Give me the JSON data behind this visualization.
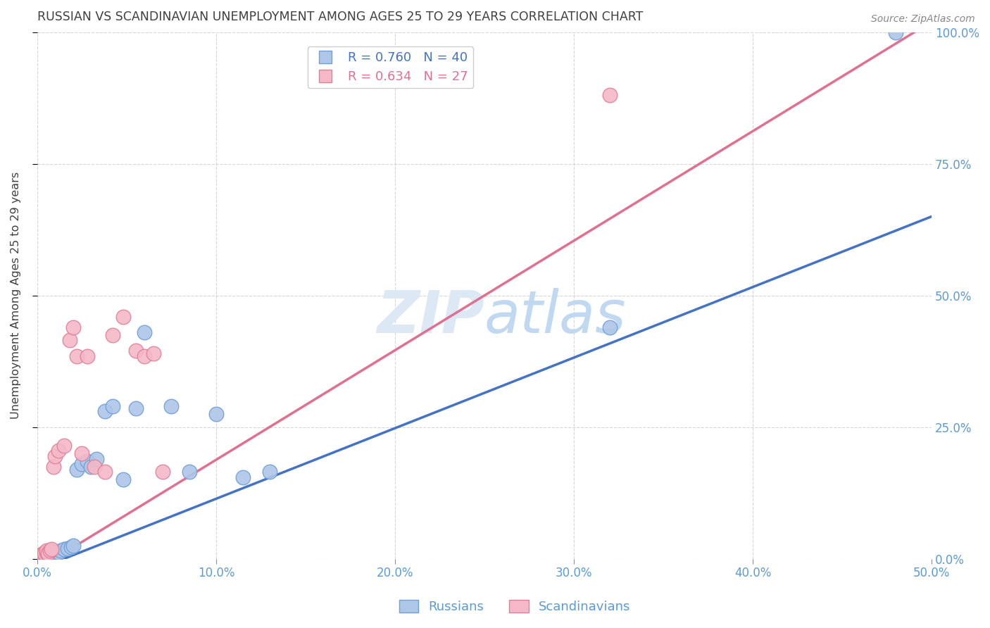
{
  "title": "RUSSIAN VS SCANDINAVIAN UNEMPLOYMENT AMONG AGES 25 TO 29 YEARS CORRELATION CHART",
  "source": "Source: ZipAtlas.com",
  "ylabel": "Unemployment Among Ages 25 to 29 years",
  "xlim": [
    0.0,
    0.5
  ],
  "ylim": [
    0.0,
    1.0
  ],
  "xticks": [
    0.0,
    0.1,
    0.2,
    0.3,
    0.4,
    0.5
  ],
  "yticks": [
    0.0,
    0.25,
    0.5,
    0.75,
    1.0
  ],
  "legend_entries": [
    {
      "label": "R = 0.760   N = 40"
    },
    {
      "label": "R = 0.634   N = 27"
    }
  ],
  "russians_x": [
    0.001,
    0.002,
    0.002,
    0.003,
    0.003,
    0.004,
    0.004,
    0.005,
    0.005,
    0.006,
    0.006,
    0.007,
    0.007,
    0.008,
    0.009,
    0.01,
    0.011,
    0.012,
    0.013,
    0.015,
    0.017,
    0.019,
    0.02,
    0.022,
    0.025,
    0.028,
    0.03,
    0.033,
    0.038,
    0.042,
    0.048,
    0.055,
    0.06,
    0.075,
    0.085,
    0.1,
    0.115,
    0.13,
    0.32,
    0.48
  ],
  "russians_y": [
    0.005,
    0.006,
    0.007,
    0.006,
    0.008,
    0.007,
    0.01,
    0.008,
    0.01,
    0.008,
    0.01,
    0.012,
    0.009,
    0.01,
    0.01,
    0.012,
    0.01,
    0.012,
    0.015,
    0.018,
    0.02,
    0.022,
    0.025,
    0.17,
    0.18,
    0.185,
    0.175,
    0.19,
    0.28,
    0.29,
    0.15,
    0.285,
    0.43,
    0.29,
    0.165,
    0.275,
    0.155,
    0.165,
    0.44,
    1.0
  ],
  "scandinavians_x": [
    0.001,
    0.002,
    0.003,
    0.004,
    0.005,
    0.005,
    0.006,
    0.007,
    0.008,
    0.009,
    0.01,
    0.012,
    0.015,
    0.018,
    0.02,
    0.022,
    0.025,
    0.028,
    0.032,
    0.038,
    0.042,
    0.048,
    0.055,
    0.06,
    0.065,
    0.07,
    0.32
  ],
  "scandinavians_y": [
    0.005,
    0.008,
    0.01,
    0.01,
    0.012,
    0.015,
    0.01,
    0.015,
    0.018,
    0.175,
    0.195,
    0.205,
    0.215,
    0.415,
    0.44,
    0.385,
    0.2,
    0.385,
    0.175,
    0.165,
    0.425,
    0.46,
    0.395,
    0.385,
    0.39,
    0.165,
    0.88
  ],
  "blue_line_x": [
    0.0,
    0.5
  ],
  "blue_line_y": [
    -0.02,
    0.65
  ],
  "pink_line_x": [
    0.0,
    0.5
  ],
  "pink_line_y": [
    -0.02,
    1.02
  ],
  "blue_color": "#4472c4",
  "pink_color": "#e07090",
  "blue_scatter_face": "#aec6e8",
  "blue_scatter_edge": "#6fa0d8",
  "pink_scatter_face": "#f4b8c8",
  "pink_scatter_edge": "#e08098",
  "watermark_color": "#dce8f4",
  "background_color": "#ffffff",
  "grid_color": "#cccccc",
  "title_color": "#404040",
  "ylabel_color": "#404040",
  "tick_color": "#5b9bd5",
  "source_color": "#888888"
}
